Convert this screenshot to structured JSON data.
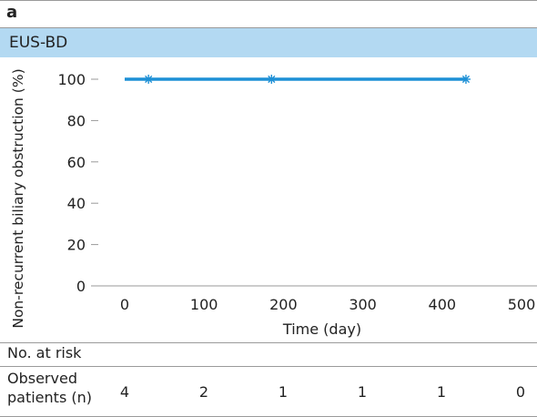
{
  "panel_label": "a",
  "banner": {
    "label": "EUS-BD",
    "color": "#b3d9f2"
  },
  "chart_data": {
    "type": "line",
    "title": "",
    "xlabel": "Time (day)",
    "ylabel": "Non-recurrent biliary obstruction (%)",
    "xlim": [
      0,
      500
    ],
    "ylim": [
      0,
      100
    ],
    "x_ticks": [
      "0",
      "100",
      "200",
      "300",
      "400",
      "500"
    ],
    "y_ticks": [
      "0",
      "20",
      "40",
      "60",
      "80",
      "100"
    ],
    "grid": false,
    "series": [
      {
        "x": [
          0,
          430
        ],
        "y": [
          100,
          100
        ],
        "color": "#1e90d6",
        "censored_x": [
          30,
          185,
          430
        ]
      }
    ]
  },
  "risk_table": {
    "title": "No. at risk",
    "row_label_line1": "Observed",
    "row_label_line2": "patients (n)",
    "values": [
      "4",
      "2",
      "1",
      "1",
      "1",
      "0"
    ]
  }
}
